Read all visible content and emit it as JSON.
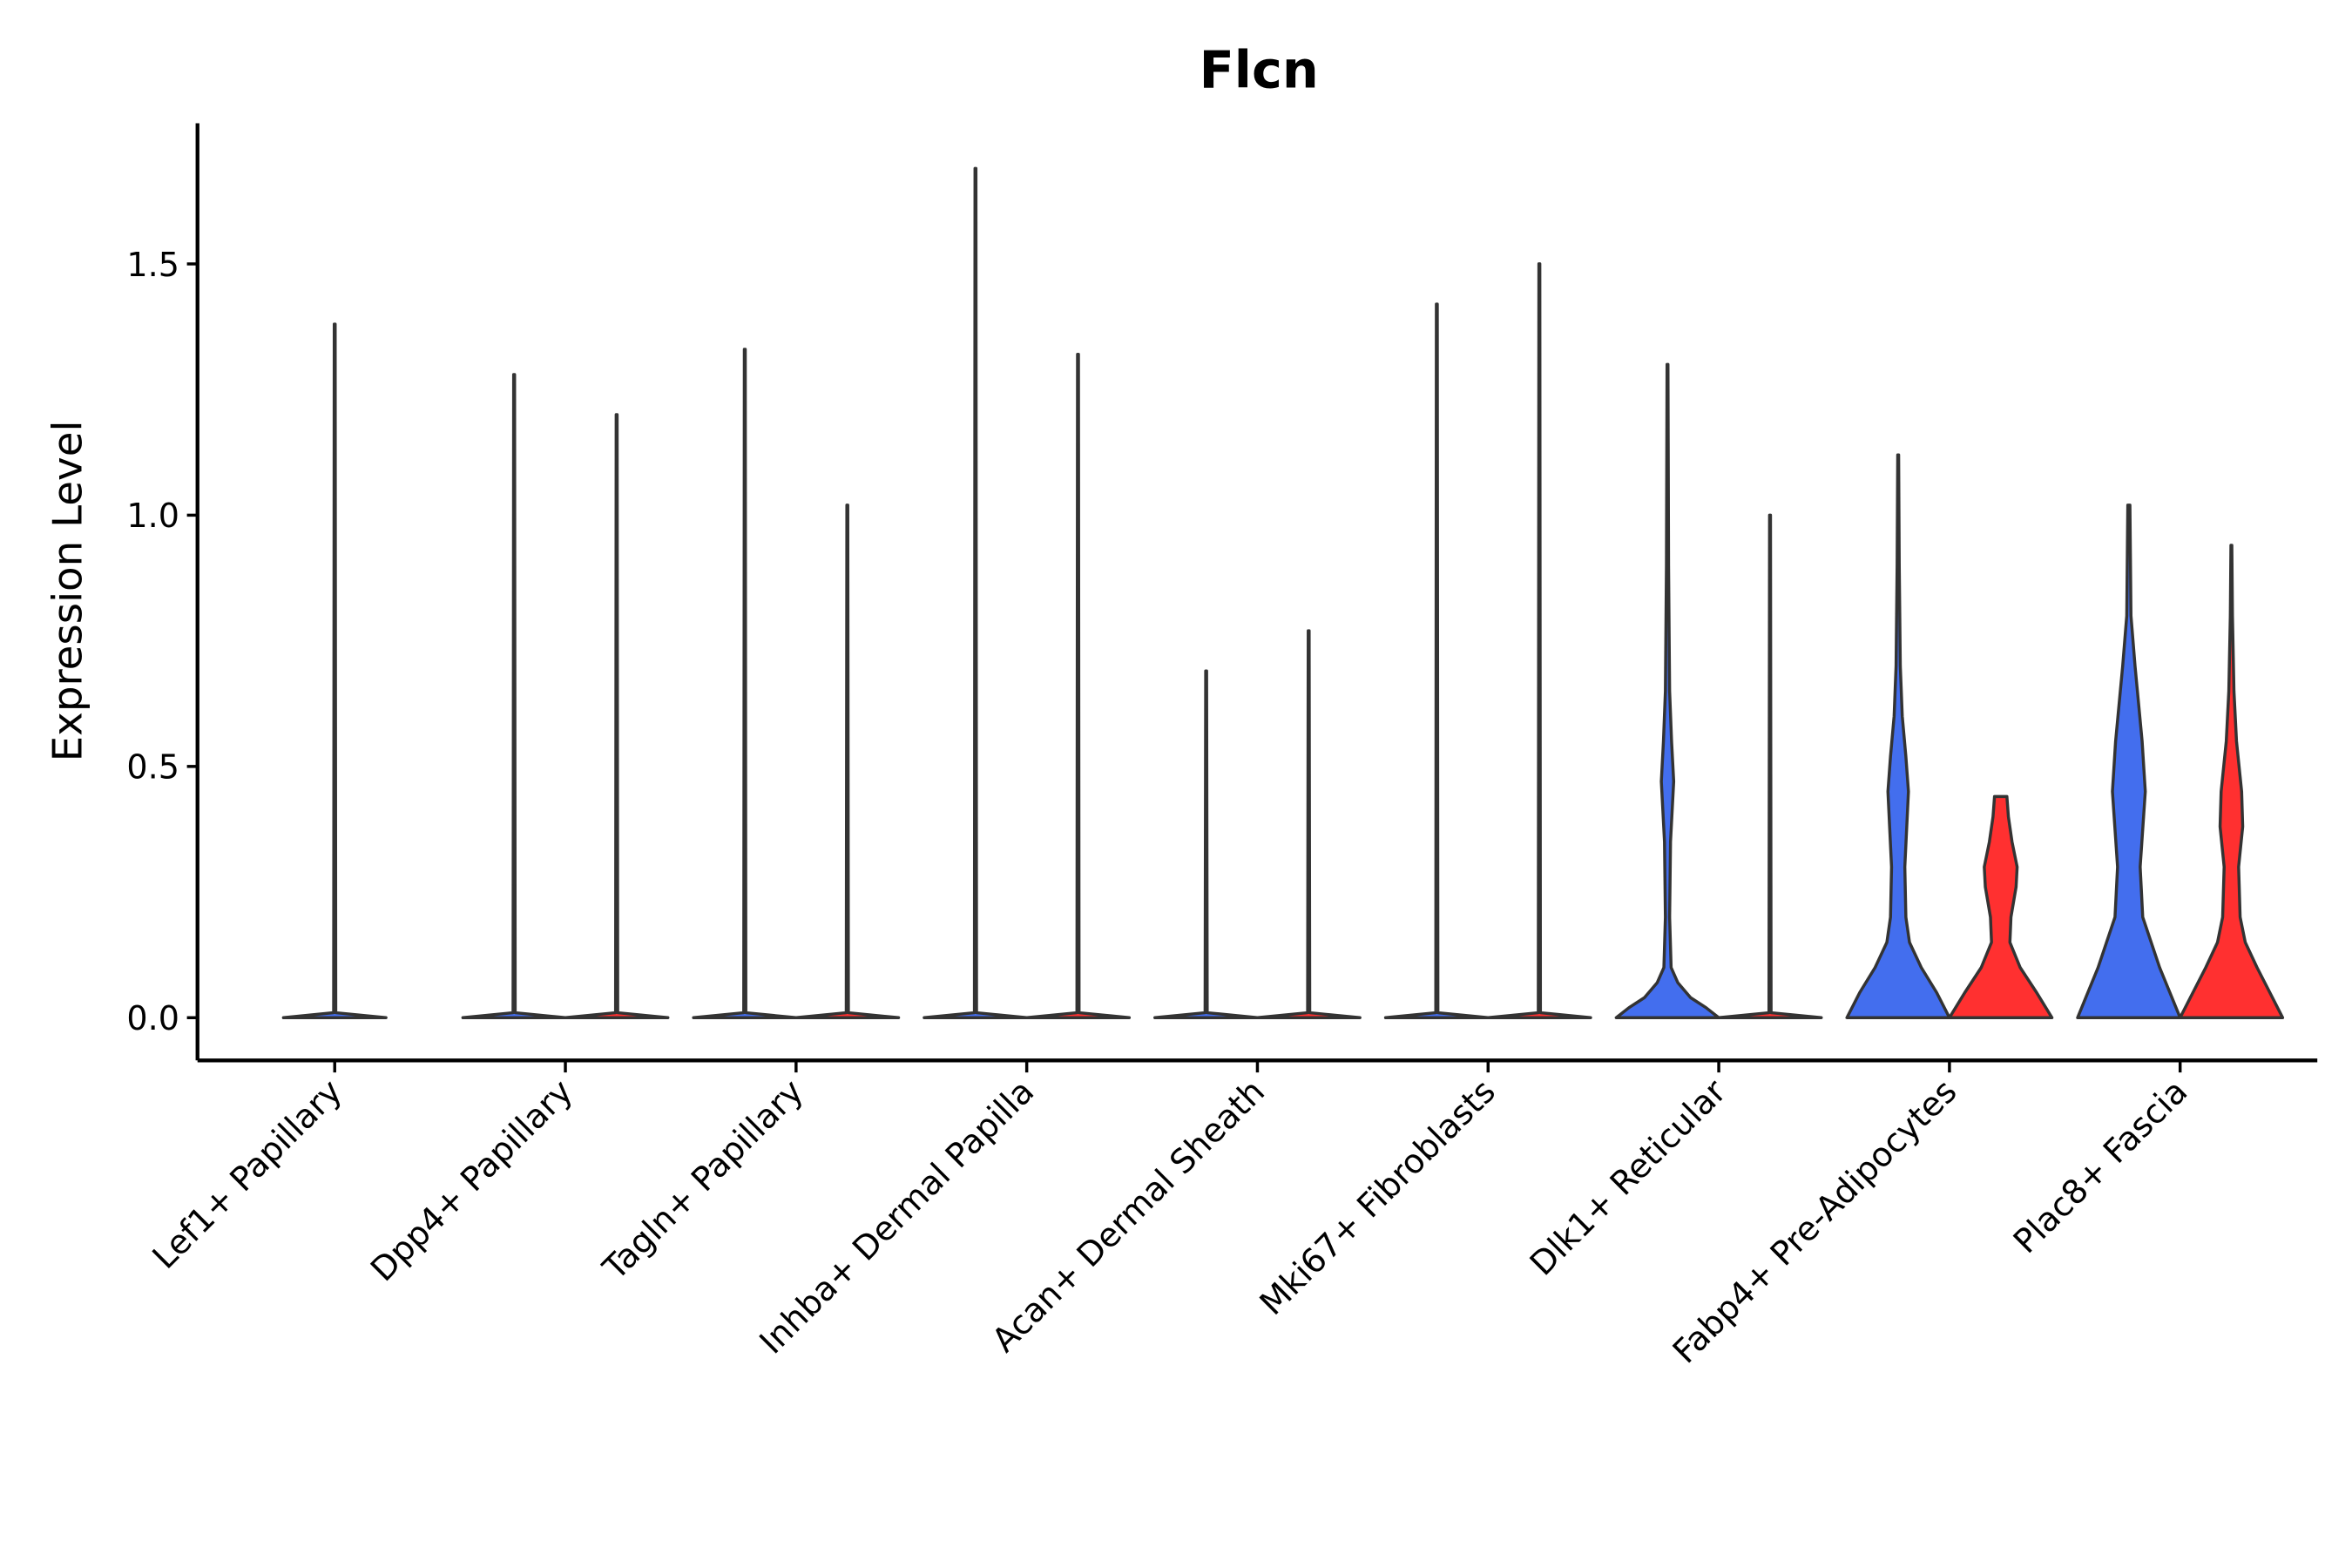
{
  "chart_data": {
    "type": "violin",
    "title": "Flcn",
    "xlabel": "",
    "ylabel": "Expression Level",
    "ylim": [
      -0.085,
      1.78
    ],
    "yticks": [
      0.0,
      0.5,
      1.0,
      1.5
    ],
    "ytick_labels": [
      "0.0",
      "0.5",
      "1.0",
      "1.5"
    ],
    "grid": false,
    "legend": "none",
    "colors": {
      "condition_a": "#436EEE",
      "condition_b": "#FF3030",
      "outline": "#333333"
    },
    "categories": [
      "Lef1+ Papillary",
      "Dpp4+ Papillary",
      "Tagln+ Papillary",
      "Inhba+ Dermal Papilla",
      "Acan+ Dermal Sheath",
      "Mki67+ Fibroblasts",
      "Dlk1+ Reticular",
      "Fabp4+ Pre-Adipocytes",
      "Plac8+ Fascia"
    ],
    "violins": [
      {
        "category": 0,
        "slot": "single",
        "color": "condition_a",
        "max": 1.38,
        "density": [
          [
            0,
            1
          ],
          [
            0.01,
            0.02
          ],
          [
            1.38,
            0.01
          ]
        ]
      },
      {
        "category": 1,
        "slot": "left",
        "color": "condition_a",
        "max": 1.28,
        "density": [
          [
            0,
            1
          ],
          [
            0.01,
            0.02
          ],
          [
            1.28,
            0.01
          ]
        ]
      },
      {
        "category": 1,
        "slot": "right",
        "color": "condition_b",
        "max": 1.2,
        "density": [
          [
            0,
            1
          ],
          [
            0.01,
            0.02
          ],
          [
            1.2,
            0.01
          ]
        ]
      },
      {
        "category": 2,
        "slot": "left",
        "color": "condition_a",
        "max": 1.33,
        "density": [
          [
            0,
            1
          ],
          [
            0.01,
            0.02
          ],
          [
            1.33,
            0.01
          ]
        ]
      },
      {
        "category": 2,
        "slot": "right",
        "color": "condition_b",
        "max": 1.02,
        "density": [
          [
            0,
            1
          ],
          [
            0.01,
            0.02
          ],
          [
            1.02,
            0.01
          ]
        ]
      },
      {
        "category": 3,
        "slot": "left",
        "color": "condition_a",
        "max": 1.69,
        "density": [
          [
            0,
            1
          ],
          [
            0.01,
            0.02
          ],
          [
            1.69,
            0.01
          ]
        ]
      },
      {
        "category": 3,
        "slot": "right",
        "color": "condition_b",
        "max": 1.32,
        "density": [
          [
            0,
            1
          ],
          [
            0.01,
            0.02
          ],
          [
            1.32,
            0.01
          ]
        ]
      },
      {
        "category": 4,
        "slot": "left",
        "color": "condition_a",
        "max": 0.69,
        "density": [
          [
            0,
            1
          ],
          [
            0.01,
            0.02
          ],
          [
            0.69,
            0.01
          ]
        ]
      },
      {
        "category": 4,
        "slot": "right",
        "color": "condition_b",
        "max": 0.77,
        "density": [
          [
            0,
            1
          ],
          [
            0.01,
            0.02
          ],
          [
            0.77,
            0.01
          ]
        ]
      },
      {
        "category": 5,
        "slot": "left",
        "color": "condition_a",
        "max": 1.42,
        "density": [
          [
            0,
            1
          ],
          [
            0.01,
            0.02
          ],
          [
            1.42,
            0.01
          ]
        ]
      },
      {
        "category": 5,
        "slot": "right",
        "color": "condition_b",
        "max": 1.5,
        "density": [
          [
            0,
            1
          ],
          [
            0.01,
            0.02
          ],
          [
            1.5,
            0.01
          ]
        ]
      },
      {
        "category": 6,
        "slot": "left",
        "color": "condition_a",
        "max": 1.3,
        "density": [
          [
            0,
            1
          ],
          [
            0.02,
            0.75
          ],
          [
            0.04,
            0.45
          ],
          [
            0.07,
            0.2
          ],
          [
            0.1,
            0.07
          ],
          [
            0.2,
            0.04
          ],
          [
            0.35,
            0.06
          ],
          [
            0.47,
            0.12
          ],
          [
            0.55,
            0.08
          ],
          [
            0.65,
            0.04
          ],
          [
            0.9,
            0.02
          ],
          [
            1.3,
            0.01
          ]
        ]
      },
      {
        "category": 6,
        "slot": "right",
        "color": "condition_b",
        "max": 1.0,
        "density": [
          [
            0,
            1
          ],
          [
            0.01,
            0.02
          ],
          [
            1.0,
            0.01
          ]
        ]
      },
      {
        "category": 7,
        "slot": "left",
        "color": "condition_a",
        "max": 1.12,
        "density": [
          [
            0,
            1
          ],
          [
            0.05,
            0.75
          ],
          [
            0.1,
            0.45
          ],
          [
            0.15,
            0.22
          ],
          [
            0.2,
            0.15
          ],
          [
            0.3,
            0.13
          ],
          [
            0.45,
            0.2
          ],
          [
            0.52,
            0.15
          ],
          [
            0.6,
            0.08
          ],
          [
            0.7,
            0.04
          ],
          [
            0.9,
            0.02
          ],
          [
            1.12,
            0.01
          ]
        ]
      },
      {
        "category": 7,
        "slot": "right",
        "color": "condition_b",
        "max": 0.44,
        "density": [
          [
            0,
            1
          ],
          [
            0.05,
            0.7
          ],
          [
            0.1,
            0.38
          ],
          [
            0.15,
            0.18
          ],
          [
            0.2,
            0.2
          ],
          [
            0.26,
            0.3
          ],
          [
            0.3,
            0.32
          ],
          [
            0.35,
            0.22
          ],
          [
            0.4,
            0.15
          ],
          [
            0.44,
            0.12
          ]
        ]
      },
      {
        "category": 8,
        "slot": "left",
        "color": "condition_a",
        "max": 1.02,
        "density": [
          [
            0,
            1
          ],
          [
            0.05,
            0.8
          ],
          [
            0.1,
            0.6
          ],
          [
            0.2,
            0.27
          ],
          [
            0.3,
            0.22
          ],
          [
            0.45,
            0.32
          ],
          [
            0.55,
            0.26
          ],
          [
            0.7,
            0.12
          ],
          [
            0.8,
            0.04
          ],
          [
            1.02,
            0.02
          ]
        ]
      },
      {
        "category": 8,
        "slot": "right",
        "color": "condition_b",
        "max": 0.94,
        "density": [
          [
            0,
            1
          ],
          [
            0.05,
            0.75
          ],
          [
            0.1,
            0.5
          ],
          [
            0.15,
            0.27
          ],
          [
            0.2,
            0.17
          ],
          [
            0.3,
            0.14
          ],
          [
            0.38,
            0.22
          ],
          [
            0.45,
            0.2
          ],
          [
            0.55,
            0.1
          ],
          [
            0.65,
            0.05
          ],
          [
            0.8,
            0.02
          ],
          [
            0.94,
            0.01
          ]
        ]
      }
    ]
  }
}
